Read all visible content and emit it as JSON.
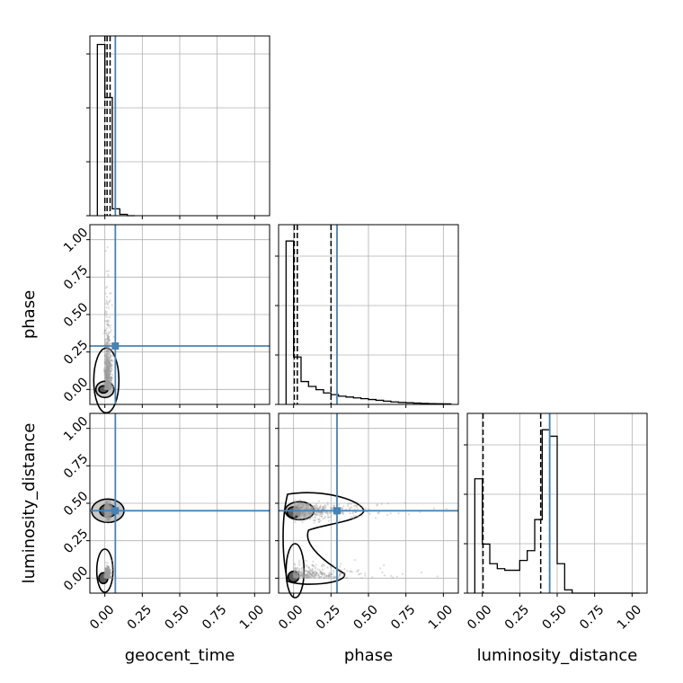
{
  "chart_data": {
    "type": "corner",
    "parameters": [
      "geocent_time",
      "phase",
      "luminosity_distance"
    ],
    "tick_labels": [
      "0.00",
      "0.25",
      "0.50",
      "0.75",
      "1.00"
    ],
    "axis_range": [
      -0.1,
      1.1
    ],
    "grid": true,
    "colors": {
      "truth": "#4682b4",
      "hist": "#000000",
      "points": "#9a9a9a",
      "contour_fill_inner": "#5a5a5a",
      "contour_fill_outer": "#c8c8c8",
      "grid": "#b0b0b0"
    },
    "truths": {
      "geocent_time": 0.07,
      "phase": 0.29,
      "luminosity_distance": 0.45
    },
    "marginals": [
      {
        "parameter": "geocent_time",
        "bin_edges": [
          -0.05,
          -0.0,
          0.05,
          0.1,
          0.15,
          0.2
        ],
        "counts": [
          1.0,
          0.69,
          0.04,
          0.008,
          0.0
        ],
        "quantiles": [
          0.0,
          0.015,
          0.035
        ]
      },
      {
        "parameter": "phase",
        "bin_edges": [
          -0.05,
          0.0,
          0.05,
          0.1,
          0.15,
          0.2,
          0.25,
          0.3,
          0.35,
          0.4,
          0.45,
          0.5,
          0.55,
          0.6,
          0.65,
          0.7,
          0.75,
          0.8,
          0.85,
          0.9,
          0.95,
          1.0,
          1.05
        ],
        "counts": [
          1.0,
          0.29,
          0.14,
          0.11,
          0.09,
          0.07,
          0.06,
          0.05,
          0.045,
          0.04,
          0.035,
          0.03,
          0.025,
          0.02,
          0.015,
          0.012,
          0.01,
          0.008,
          0.006,
          0.005,
          0.004,
          0.003
        ],
        "quantiles": [
          0.005,
          0.025,
          0.25
        ]
      },
      {
        "parameter": "luminosity_distance",
        "bin_edges": [
          -0.05,
          0.0,
          0.05,
          0.1,
          0.15,
          0.2,
          0.25,
          0.3,
          0.35,
          0.4,
          0.45,
          0.5,
          0.55,
          0.6,
          0.65,
          0.7,
          0.75,
          0.8,
          0.85,
          0.9,
          0.95,
          1.0,
          1.05
        ],
        "counts": [
          0.7,
          0.3,
          0.18,
          0.15,
          0.14,
          0.14,
          0.2,
          0.26,
          0.45,
          1.0,
          0.96,
          0.18,
          0.02,
          0.0,
          0.0,
          0.0,
          0.0,
          0.0,
          0.0,
          0.0,
          0.0,
          0.0
        ],
        "quantiles": [
          0.005,
          0.39,
          0.45
        ]
      }
    ],
    "joint_panels": [
      {
        "x": "geocent_time",
        "y": "phase"
      },
      {
        "x": "geocent_time",
        "y": "luminosity_distance"
      },
      {
        "x": "phase",
        "y": "luminosity_distance"
      }
    ]
  }
}
